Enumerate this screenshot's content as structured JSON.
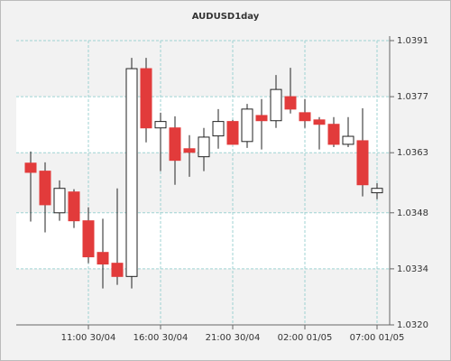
{
  "chart_data": {
    "type": "candlestick",
    "title": "AUDUSD1day",
    "categories": [
      null,
      null,
      null,
      null,
      "11:00 30/04",
      null,
      null,
      null,
      null,
      "16:00 30/04",
      null,
      null,
      null,
      null,
      "21:00 30/04",
      null,
      null,
      null,
      null,
      "02:00 01/05",
      null,
      null,
      null,
      null,
      "07:00 01/05"
    ],
    "open": [
      1.03604,
      1.03584,
      1.0348,
      1.03532,
      1.0346,
      1.03381,
      1.03354,
      1.03321,
      1.0384,
      1.03692,
      1.03692,
      1.0364,
      1.0362,
      1.03672,
      1.03708,
      1.03658,
      1.03723,
      1.0371,
      1.0377,
      1.0373,
      1.03712,
      1.03701,
      1.03651,
      1.0366,
      1.0353
    ],
    "high": [
      1.03633,
      1.03606,
      1.03561,
      1.03539,
      1.03494,
      1.03465,
      1.03541,
      1.03867,
      1.03867,
      1.0373,
      1.03721,
      1.03674,
      1.03692,
      1.03739,
      1.03712,
      1.03752,
      1.03764,
      1.03824,
      1.03842,
      1.03764,
      1.03719,
      1.03719,
      1.03719,
      1.03741,
      1.03554
    ],
    "low": [
      1.03458,
      1.03431,
      1.0346,
      1.03442,
      1.03354,
      1.03291,
      1.033,
      1.03291,
      1.03656,
      1.03584,
      1.0355,
      1.0357,
      1.03584,
      1.0364,
      1.03651,
      1.03642,
      1.03638,
      1.03692,
      1.03728,
      1.03692,
      1.03638,
      1.03644,
      1.03644,
      1.03521,
      1.03514
    ],
    "close": [
      1.03581,
      1.035,
      1.03541,
      1.0346,
      1.0337,
      1.03352,
      1.03321,
      1.0384,
      1.03692,
      1.03708,
      1.03611,
      1.03631,
      1.03669,
      1.03708,
      1.03651,
      1.03739,
      1.0371,
      1.03788,
      1.03739,
      1.0371,
      1.03701,
      1.03651,
      1.03671,
      1.0355,
      1.03541
    ],
    "up_color": "#ffffff",
    "down_color": "#e23b3b",
    "ylim": [
      1.032,
      1.0391
    ],
    "yticks": [
      {
        "value": 1.032,
        "label": "1.0320"
      },
      1.0334,
      1.0348,
      1.0363,
      1.0377,
      1.0391
    ],
    "grid": true
  }
}
